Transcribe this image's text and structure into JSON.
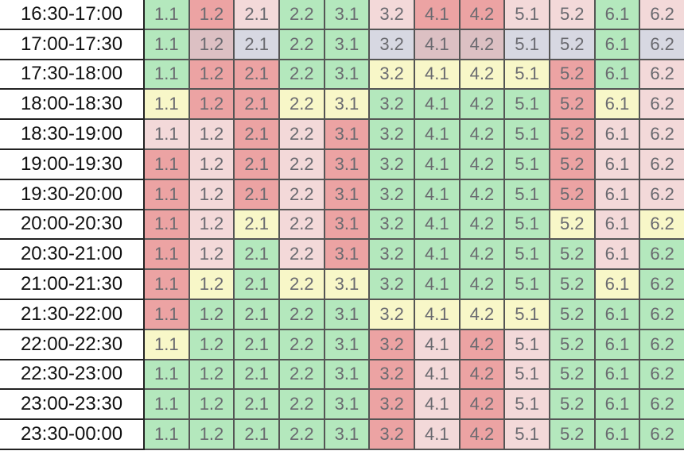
{
  "columns": [
    "1.1",
    "1.2",
    "2.1",
    "2.2",
    "3.1",
    "3.2",
    "4.1",
    "4.2",
    "5.1",
    "5.2",
    "6.1",
    "6.2"
  ],
  "status_colors": {
    "G": "#b4e8bd",
    "R": "#eca3a3",
    "P": "#f3d9d9",
    "Y": "#f8f7c8",
    "B": "#d7d8e2",
    "M": "#dcc0c3"
  },
  "rows": [
    {
      "time": "16:30-17:00",
      "status": "GRPGGPRRPPGP"
    },
    {
      "time": "17:00-17:30",
      "status": "GMBGGBMMBBGB"
    },
    {
      "time": "17:30-18:00",
      "status": "GRRGGYYYYRGP"
    },
    {
      "time": "18:00-18:30",
      "status": "YRRYYGGGGRYP"
    },
    {
      "time": "18:30-19:00",
      "status": "PPRPRGGGGRPP"
    },
    {
      "time": "19:00-19:30",
      "status": "RPRPRGGGGRPP"
    },
    {
      "time": "19:30-20:00",
      "status": "RPRPRGGGGRPP"
    },
    {
      "time": "20:00-20:30",
      "status": "RPYPRGGGGYPY"
    },
    {
      "time": "20:30-21:00",
      "status": "RPGPRGGGGGPG"
    },
    {
      "time": "21:00-21:30",
      "status": "RYGYYGGGGGYG"
    },
    {
      "time": "21:30-22:00",
      "status": "RGGGGYYYYGGG"
    },
    {
      "time": "22:00-22:30",
      "status": "YGGGGRPRPGGG"
    },
    {
      "time": "22:30-23:00",
      "status": "GGGGGRPRPGGG"
    },
    {
      "time": "23:00-23:30",
      "status": "GGGGGRPRPGGG"
    },
    {
      "time": "23:30-00:00",
      "status": "GGGGGRPRPGGG"
    }
  ]
}
